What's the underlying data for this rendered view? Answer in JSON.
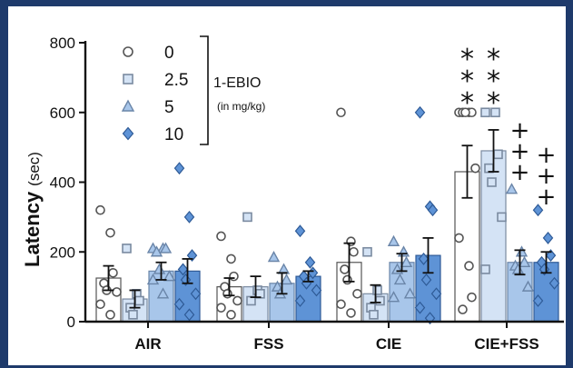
{
  "chart_data": {
    "type": "bar",
    "ylabel": "Latency",
    "ylabel_unit": "(sec)",
    "ylim": [
      0,
      800
    ],
    "yticks": [
      "0",
      "200",
      "400",
      "600",
      "800"
    ],
    "categories": [
      "AIR",
      "FSS",
      "CIE",
      "CIE+FSS"
    ],
    "legend": {
      "title": "1-EBIO",
      "subtitle": "(in mg/kg)",
      "position": "top-left"
    },
    "series": [
      {
        "name": "0",
        "marker": "circle",
        "fill": "#ffffff",
        "edge": "#555555",
        "values": [
          125,
          100,
          170,
          430
        ],
        "errors": [
          35,
          25,
          55,
          75
        ],
        "points": [
          [
            320,
            255,
            140,
            110,
            90,
            85,
            50,
            20
          ],
          [
            245,
            180,
            130,
            100,
            80,
            60,
            40,
            20
          ],
          [
            600,
            230,
            200,
            150,
            120,
            80,
            50,
            25
          ],
          [
            600,
            600,
            600,
            600,
            600,
            440,
            240,
            160,
            70,
            35
          ]
        ]
      },
      {
        "name": "2.5",
        "marker": "square",
        "fill": "#d4e3f5",
        "edge": "#7a8aa0",
        "values": [
          65,
          100,
          80,
          490
        ],
        "errors": [
          25,
          30,
          25,
          60
        ],
        "points": [
          [
            210,
            80,
            60,
            40,
            20
          ],
          [
            300,
            90,
            80,
            60
          ],
          [
            200,
            90,
            60,
            40,
            20
          ],
          [
            600,
            600,
            480,
            440,
            400,
            300,
            150
          ]
        ]
      },
      {
        "name": "5",
        "marker": "triangle",
        "fill": "#a8c6ea",
        "edge": "#6a85a8",
        "values": [
          145,
          110,
          170,
          170
        ],
        "errors": [
          25,
          30,
          25,
          35
        ],
        "points": [
          [
            210,
            210,
            210,
            200,
            150,
            130,
            120,
            80
          ],
          [
            185,
            150,
            120,
            100,
            80
          ],
          [
            230,
            200,
            170,
            150,
            120,
            80,
            70
          ],
          [
            380,
            200,
            170,
            160,
            150,
            100
          ]
        ]
      },
      {
        "name": "10",
        "marker": "diamond",
        "fill": "#5e93d6",
        "edge": "#2e5a96",
        "values": [
          145,
          130,
          190,
          170
        ],
        "errors": [
          35,
          15,
          50,
          30
        ],
        "points": [
          [
            440,
            300,
            190,
            150,
            120,
            80,
            50,
            20
          ],
          [
            260,
            170,
            140,
            130,
            110,
            90,
            60
          ],
          [
            600,
            330,
            320,
            180,
            120,
            80,
            40,
            10
          ],
          [
            320,
            240,
            190,
            170,
            150,
            110,
            60
          ]
        ]
      }
    ],
    "annotations": [
      {
        "category": "CIE+FSS",
        "series": "0",
        "text": "***"
      },
      {
        "category": "CIE+FSS",
        "series": "2.5",
        "text": "***"
      },
      {
        "category": "CIE+FSS",
        "series": "5",
        "text": "+++"
      },
      {
        "category": "CIE+FSS",
        "series": "10",
        "text": "+++"
      }
    ]
  }
}
